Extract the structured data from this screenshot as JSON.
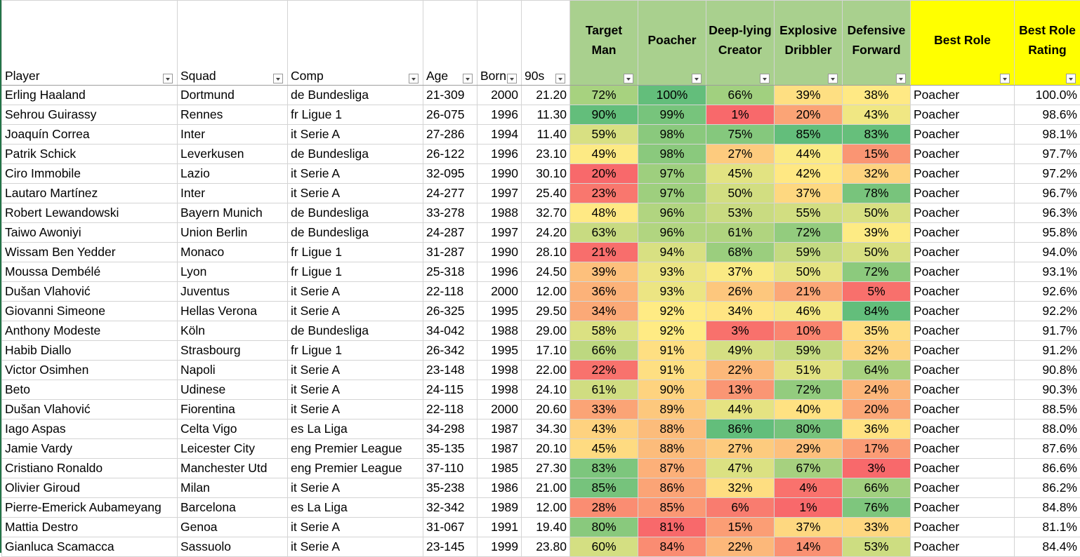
{
  "table": {
    "columns": [
      "Player",
      "Squad",
      "Comp",
      "Age",
      "Born",
      "90s",
      "Target Man",
      "Poacher",
      "Deep-lying Creator",
      "Explosive Dribbler",
      "Defensive Forward",
      "Best Role",
      "Best Role Rating"
    ],
    "rows": [
      [
        "Erling Haaland",
        "Dortmund",
        "de Bundesliga",
        "21-309",
        "2000",
        "21.20",
        "72%",
        "100%",
        "66%",
        "39%",
        "38%",
        "Poacher",
        "100.0%"
      ],
      [
        "Sehrou Guirassy",
        "Rennes",
        "fr Ligue 1",
        "26-075",
        "1996",
        "11.30",
        "90%",
        "99%",
        "1%",
        "20%",
        "43%",
        "Poacher",
        "98.6%"
      ],
      [
        "Joaquín Correa",
        "Inter",
        "it Serie A",
        "27-286",
        "1994",
        "11.40",
        "59%",
        "98%",
        "75%",
        "85%",
        "83%",
        "Poacher",
        "98.1%"
      ],
      [
        "Patrik Schick",
        "Leverkusen",
        "de Bundesliga",
        "26-122",
        "1996",
        "23.10",
        "49%",
        "98%",
        "27%",
        "44%",
        "15%",
        "Poacher",
        "97.7%"
      ],
      [
        "Ciro Immobile",
        "Lazio",
        "it Serie A",
        "32-095",
        "1990",
        "30.10",
        "20%",
        "97%",
        "45%",
        "42%",
        "32%",
        "Poacher",
        "97.2%"
      ],
      [
        "Lautaro Martínez",
        "Inter",
        "it Serie A",
        "24-277",
        "1997",
        "25.40",
        "23%",
        "97%",
        "50%",
        "37%",
        "78%",
        "Poacher",
        "96.7%"
      ],
      [
        "Robert Lewandowski",
        "Bayern Munich",
        "de Bundesliga",
        "33-278",
        "1988",
        "32.70",
        "48%",
        "96%",
        "53%",
        "55%",
        "50%",
        "Poacher",
        "96.3%"
      ],
      [
        "Taiwo Awoniyi",
        "Union Berlin",
        "de Bundesliga",
        "24-287",
        "1997",
        "24.20",
        "63%",
        "96%",
        "61%",
        "72%",
        "39%",
        "Poacher",
        "95.8%"
      ],
      [
        "Wissam Ben Yedder",
        "Monaco",
        "fr Ligue 1",
        "31-287",
        "1990",
        "28.10",
        "21%",
        "94%",
        "68%",
        "59%",
        "50%",
        "Poacher",
        "94.0%"
      ],
      [
        "Moussa Dembélé",
        "Lyon",
        "fr Ligue 1",
        "25-318",
        "1996",
        "24.50",
        "39%",
        "93%",
        "37%",
        "50%",
        "72%",
        "Poacher",
        "93.1%"
      ],
      [
        "Dušan Vlahović",
        "Juventus",
        "it Serie A",
        "22-118",
        "2000",
        "12.00",
        "36%",
        "93%",
        "26%",
        "21%",
        "5%",
        "Poacher",
        "92.6%"
      ],
      [
        "Giovanni Simeone",
        "Hellas Verona",
        "it Serie A",
        "26-325",
        "1995",
        "29.50",
        "34%",
        "92%",
        "34%",
        "46%",
        "84%",
        "Poacher",
        "92.2%"
      ],
      [
        "Anthony Modeste",
        "Köln",
        "de Bundesliga",
        "34-042",
        "1988",
        "29.00",
        "58%",
        "92%",
        "3%",
        "10%",
        "35%",
        "Poacher",
        "91.7%"
      ],
      [
        "Habib Diallo",
        "Strasbourg",
        "fr Ligue 1",
        "26-342",
        "1995",
        "17.10",
        "66%",
        "91%",
        "49%",
        "59%",
        "32%",
        "Poacher",
        "91.2%"
      ],
      [
        "Victor Osimhen",
        "Napoli",
        "it Serie A",
        "23-148",
        "1998",
        "22.00",
        "22%",
        "91%",
        "22%",
        "51%",
        "64%",
        "Poacher",
        "90.8%"
      ],
      [
        "Beto",
        "Udinese",
        "it Serie A",
        "24-115",
        "1998",
        "24.10",
        "61%",
        "90%",
        "13%",
        "72%",
        "24%",
        "Poacher",
        "90.3%"
      ],
      [
        "Dušan Vlahović",
        "Fiorentina",
        "it Serie A",
        "22-118",
        "2000",
        "20.60",
        "33%",
        "89%",
        "44%",
        "40%",
        "20%",
        "Poacher",
        "88.5%"
      ],
      [
        "Iago Aspas",
        "Celta Vigo",
        "es La Liga",
        "34-298",
        "1987",
        "34.30",
        "43%",
        "88%",
        "86%",
        "80%",
        "36%",
        "Poacher",
        "88.0%"
      ],
      [
        "Jamie Vardy",
        "Leicester City",
        "eng Premier League",
        "35-135",
        "1987",
        "20.10",
        "45%",
        "88%",
        "27%",
        "29%",
        "17%",
        "Poacher",
        "87.6%"
      ],
      [
        "Cristiano Ronaldo",
        "Manchester Utd",
        "eng Premier League",
        "37-110",
        "1985",
        "27.30",
        "83%",
        "87%",
        "47%",
        "67%",
        "3%",
        "Poacher",
        "86.6%"
      ],
      [
        "Olivier Giroud",
        "Milan",
        "it Serie A",
        "35-238",
        "1986",
        "21.00",
        "85%",
        "86%",
        "32%",
        "4%",
        "66%",
        "Poacher",
        "86.2%"
      ],
      [
        "Pierre-Emerick Aubameyang",
        "Barcelona",
        "es La Liga",
        "32-342",
        "1989",
        "12.00",
        "28%",
        "85%",
        "6%",
        "1%",
        "76%",
        "Poacher",
        "84.8%"
      ],
      [
        "Mattia Destro",
        "Genoa",
        "it Serie A",
        "31-067",
        "1991",
        "19.40",
        "80%",
        "81%",
        "15%",
        "37%",
        "33%",
        "Poacher",
        "81.1%"
      ],
      [
        "Gianluca Scamacca",
        "Sassuolo",
        "it Serie A",
        "23-145",
        "1999",
        "23.80",
        "60%",
        "84%",
        "22%",
        "14%",
        "53%",
        "Poacher",
        "84.4%"
      ]
    ]
  }
}
